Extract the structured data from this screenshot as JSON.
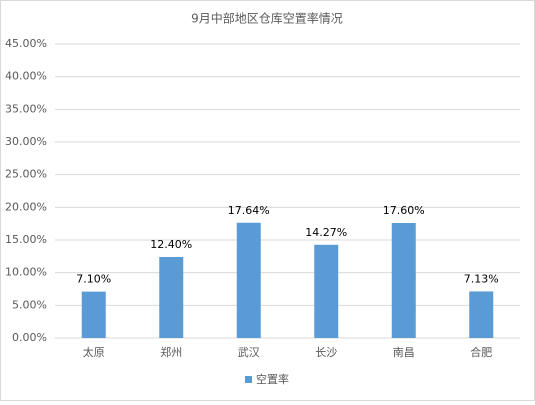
{
  "chart_data": {
    "type": "bar",
    "title": "9月中部地区仓库空置率情况",
    "categories": [
      "太原",
      "郑州",
      "武汉",
      "长沙",
      "南昌",
      "合肥"
    ],
    "series": [
      {
        "name": "空置率",
        "color": "#5b9bd5",
        "values": [
          7.1,
          12.4,
          17.64,
          14.27,
          17.6,
          7.13
        ],
        "value_labels": [
          "7.10%",
          "12.40%",
          "17.64%",
          "14.27%",
          "17.60%",
          "7.13%"
        ]
      }
    ],
    "ylim": [
      0,
      45
    ],
    "yticks": [
      {
        "value": 0,
        "label": "0.00%"
      },
      {
        "value": 5,
        "label": "5.00%"
      },
      {
        "value": 10,
        "label": "10.00%"
      },
      {
        "value": 15,
        "label": "15.00%"
      },
      {
        "value": 20,
        "label": "20.00%"
      },
      {
        "value": 25,
        "label": "25.00%"
      },
      {
        "value": 30,
        "label": "30.00%"
      },
      {
        "value": 35,
        "label": "35.00%"
      },
      {
        "value": 40,
        "label": "40.00%"
      },
      {
        "value": 45,
        "label": "45.00%"
      }
    ],
    "grid": true,
    "legend": "bottom"
  }
}
